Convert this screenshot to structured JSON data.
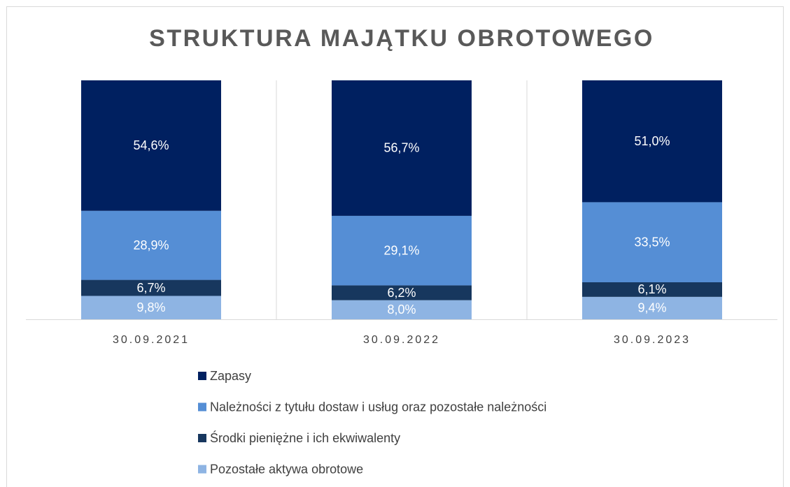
{
  "chart_data": {
    "type": "stacked_bar",
    "title": "STRUKTURA MAJĄTKU OBROTOWEGO",
    "categories": [
      "30.09.2021",
      "30.09.2022",
      "30.09.2023"
    ],
    "ylim": [
      0,
      100
    ],
    "series": [
      {
        "name": "Zapasy",
        "color": "#002060",
        "values": [
          54.6,
          56.7,
          51.0
        ],
        "value_labels": [
          "54,6%",
          "56,7%",
          "51,0%"
        ]
      },
      {
        "name": "Należności z tytułu dostaw i usług oraz pozostałe należności",
        "color": "#558ed5",
        "values": [
          28.9,
          29.1,
          33.5
        ],
        "value_labels": [
          "28,9%",
          "29,1%",
          "33,5%"
        ]
      },
      {
        "name": "Środki pieniężne i ich ekwiwalenty",
        "color": "#17375e",
        "values": [
          6.7,
          6.2,
          6.1
        ],
        "value_labels": [
          "6,7%",
          "6,2%",
          "6,1%"
        ]
      },
      {
        "name": "Pozostałe aktywa obrotowe",
        "color": "#8eb4e3",
        "values": [
          9.8,
          8.0,
          9.4
        ],
        "value_labels": [
          "9,8%",
          "8,0%",
          "9,4%"
        ]
      }
    ]
  }
}
